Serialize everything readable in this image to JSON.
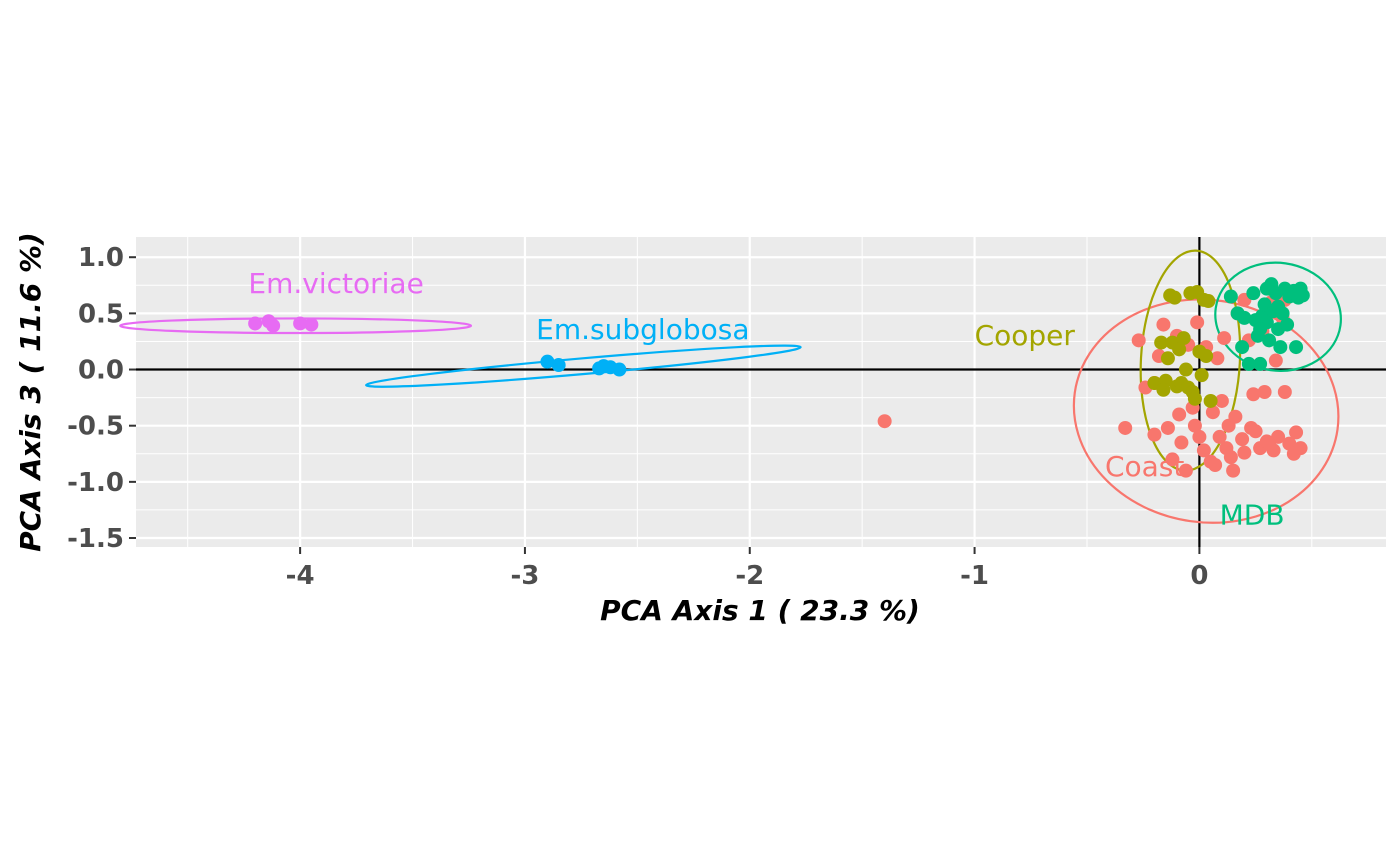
{
  "chart_data": {
    "type": "scatter",
    "title": "",
    "xlabel": "PCA Axis 1 ( 23.3 %)",
    "ylabel": "PCA Axis 3 ( 11.6 %)",
    "xlim": [
      -4.73,
      0.83
    ],
    "ylim": [
      -1.58,
      1.18
    ],
    "x_ticks": [
      -4,
      -3,
      -2,
      -1,
      0
    ],
    "x_tick_labels": [
      "-4",
      "-3",
      "-2",
      "-1",
      "0"
    ],
    "y_ticks": [
      1.0,
      0.5,
      0.0,
      -0.5,
      -1.0,
      -1.5
    ],
    "y_tick_labels": [
      "1.0",
      "0.5",
      "0.0",
      "-0.5",
      "-1.0",
      "-1.5"
    ],
    "grid": true,
    "reference_lines": {
      "x": 0,
      "y": 0
    },
    "groups": [
      {
        "name": "Em.victoriae",
        "color": "#E76BF3",
        "label_at": [
          -4.23,
          0.68
        ],
        "ellipse": {
          "cx": -4.02,
          "cy": 0.39,
          "rx": 0.78,
          "ry": 0.065,
          "angle": 0
        },
        "points": [
          [
            -4.2,
            0.41
          ],
          [
            -4.14,
            0.43
          ],
          [
            -4.12,
            0.39
          ],
          [
            -4.0,
            0.41
          ],
          [
            -3.95,
            0.4
          ]
        ]
      },
      {
        "name": "Em.subglobosa",
        "color": "#00B0F6",
        "label_at": [
          -2.95,
          0.27
        ],
        "ellipse": {
          "cx": -2.74,
          "cy": 0.03,
          "rx": 0.97,
          "ry": 0.07,
          "angle": -5
        },
        "points": [
          [
            -2.9,
            0.07
          ],
          [
            -2.85,
            0.04
          ],
          [
            -2.65,
            0.03
          ],
          [
            -2.62,
            0.02
          ],
          [
            -2.58,
            0.0
          ],
          [
            -2.67,
            0.01
          ]
        ]
      },
      {
        "name": "Coast",
        "color": "#F8766D",
        "label_at": [
          -0.42,
          -0.95
        ],
        "ellipse": {
          "cx": 0.03,
          "cy": -0.37,
          "rx": 0.59,
          "ry": 0.99,
          "angle": 8
        },
        "points": [
          [
            -1.4,
            -0.46
          ],
          [
            -0.33,
            -0.52
          ],
          [
            -0.27,
            0.26
          ],
          [
            -0.24,
            -0.16
          ],
          [
            -0.2,
            -0.12
          ],
          [
            -0.18,
            0.12
          ],
          [
            -0.16,
            0.4
          ],
          [
            -0.14,
            -0.52
          ],
          [
            -0.12,
            -0.8
          ],
          [
            -0.1,
            0.3
          ],
          [
            -0.09,
            -0.4
          ],
          [
            -0.08,
            -0.65
          ],
          [
            -0.06,
            -0.9
          ],
          [
            -0.05,
            0.22
          ],
          [
            -0.03,
            -0.34
          ],
          [
            -0.02,
            -0.5
          ],
          [
            -0.01,
            0.42
          ],
          [
            0.0,
            -0.6
          ],
          [
            0.02,
            -0.72
          ],
          [
            0.03,
            0.2
          ],
          [
            0.05,
            -0.82
          ],
          [
            0.06,
            -0.38
          ],
          [
            0.08,
            0.1
          ],
          [
            0.09,
            -0.6
          ],
          [
            0.1,
            -0.28
          ],
          [
            0.11,
            0.28
          ],
          [
            0.12,
            -0.7
          ],
          [
            0.13,
            -0.5
          ],
          [
            0.14,
            -0.78
          ],
          [
            0.16,
            -0.42
          ],
          [
            0.17,
            0.5
          ],
          [
            0.19,
            -0.62
          ],
          [
            0.2,
            -0.74
          ],
          [
            0.22,
            0.26
          ],
          [
            0.24,
            -0.22
          ],
          [
            0.25,
            -0.55
          ],
          [
            0.27,
            -0.7
          ],
          [
            0.29,
            -0.2
          ],
          [
            0.3,
            -0.64
          ],
          [
            0.32,
            0.6
          ],
          [
            0.33,
            -0.72
          ],
          [
            0.35,
            -0.6
          ],
          [
            0.37,
            0.46
          ],
          [
            0.38,
            -0.2
          ],
          [
            0.4,
            -0.66
          ],
          [
            0.42,
            -0.75
          ],
          [
            0.43,
            -0.56
          ],
          [
            0.2,
            0.62
          ],
          [
            0.28,
            0.34
          ],
          [
            0.34,
            0.08
          ],
          [
            -0.2,
            -0.58
          ],
          [
            0.15,
            -0.9
          ],
          [
            0.07,
            -0.85
          ],
          [
            0.23,
            -0.52
          ],
          [
            0.31,
            -0.66
          ],
          [
            0.45,
            -0.7
          ],
          [
            0.38,
            0.62
          ],
          [
            0.26,
            0.44
          ]
        ]
      },
      {
        "name": "Cooper",
        "color": "#A3A500",
        "label_at": [
          -1.0,
          0.22
        ],
        "ellipse": {
          "cx": -0.04,
          "cy": 0.08,
          "rx": 0.22,
          "ry": 0.98,
          "angle": 3
        },
        "points": [
          [
            -0.2,
            -0.12
          ],
          [
            -0.17,
            0.24
          ],
          [
            -0.15,
            -0.1
          ],
          [
            -0.13,
            0.66
          ],
          [
            -0.12,
            0.24
          ],
          [
            -0.11,
            0.64
          ],
          [
            -0.1,
            -0.15
          ],
          [
            -0.09,
            0.18
          ],
          [
            -0.08,
            -0.12
          ],
          [
            -0.07,
            0.28
          ],
          [
            -0.06,
            0.0
          ],
          [
            -0.05,
            -0.16
          ],
          [
            -0.04,
            0.68
          ],
          [
            -0.03,
            -0.2
          ],
          [
            -0.02,
            -0.26
          ],
          [
            -0.01,
            0.69
          ],
          [
            0.0,
            0.16
          ],
          [
            0.01,
            -0.05
          ],
          [
            0.02,
            0.62
          ],
          [
            0.03,
            0.12
          ],
          [
            0.05,
            -0.28
          ],
          [
            -0.14,
            0.1
          ],
          [
            -0.16,
            -0.18
          ],
          [
            0.04,
            0.61
          ]
        ]
      },
      {
        "name": "MDB",
        "color": "#00BF7D",
        "label_at": [
          0.09,
          -1.38
        ],
        "ellipse": {
          "cx": 0.35,
          "cy": 0.47,
          "rx": 0.28,
          "ry": 0.48,
          "angle": 8
        },
        "points": [
          [
            0.14,
            0.65
          ],
          [
            0.17,
            0.5
          ],
          [
            0.19,
            0.2
          ],
          [
            0.2,
            0.46
          ],
          [
            0.22,
            0.05
          ],
          [
            0.24,
            0.68
          ],
          [
            0.25,
            0.44
          ],
          [
            0.26,
            0.3
          ],
          [
            0.27,
            0.05
          ],
          [
            0.28,
            0.48
          ],
          [
            0.29,
            0.58
          ],
          [
            0.3,
            0.42
          ],
          [
            0.31,
            0.26
          ],
          [
            0.32,
            0.76
          ],
          [
            0.33,
            0.52
          ],
          [
            0.34,
            0.68
          ],
          [
            0.35,
            0.36
          ],
          [
            0.36,
            0.2
          ],
          [
            0.37,
            0.5
          ],
          [
            0.38,
            0.72
          ],
          [
            0.39,
            0.4
          ],
          [
            0.4,
            0.65
          ],
          [
            0.42,
            0.7
          ],
          [
            0.43,
            0.2
          ],
          [
            0.44,
            0.64
          ],
          [
            0.45,
            0.72
          ],
          [
            0.46,
            0.66
          ],
          [
            0.3,
            0.72
          ],
          [
            0.27,
            0.36
          ],
          [
            0.35,
            0.56
          ]
        ]
      }
    ]
  }
}
